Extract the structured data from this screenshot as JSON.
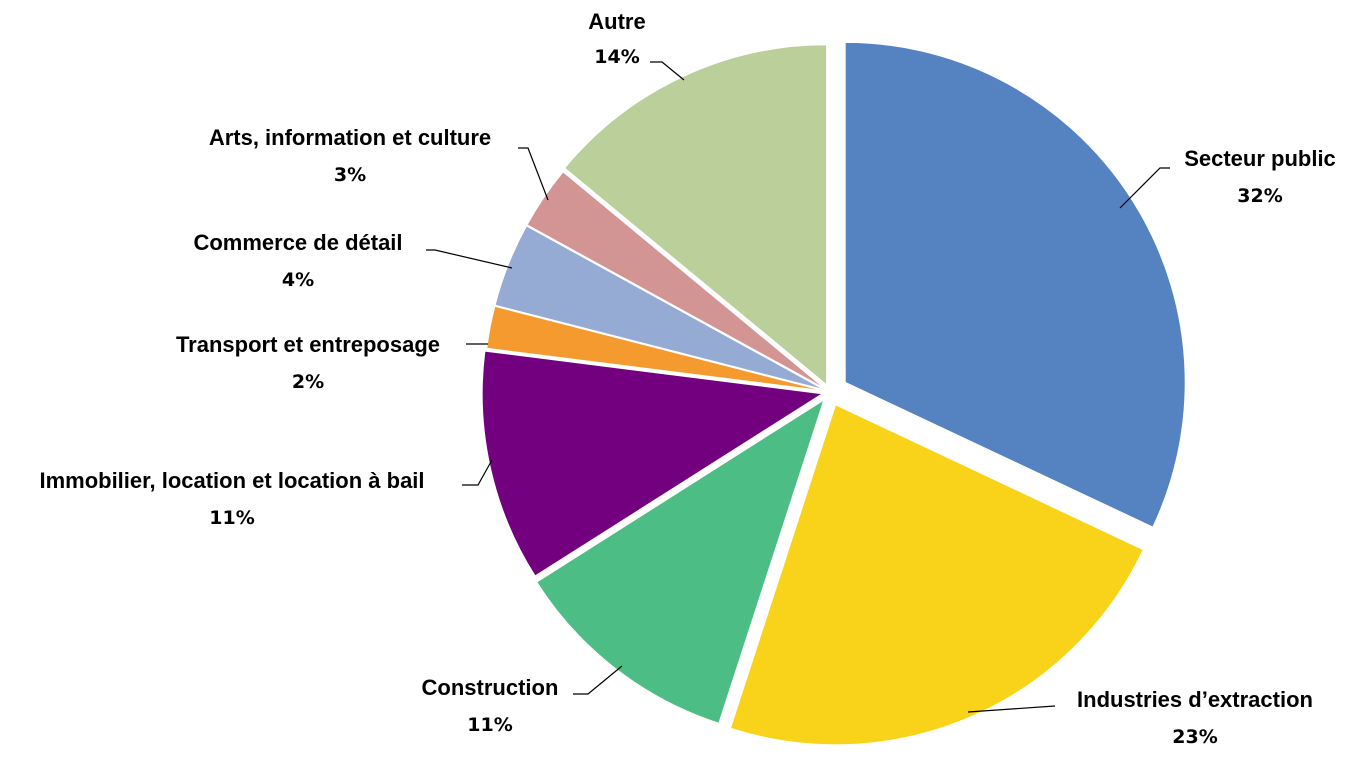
{
  "chart_data": {
    "type": "pie",
    "title": "",
    "slices": [
      {
        "label": "Secteur public",
        "value": 32,
        "value_label": "32%",
        "color": "#5583c2"
      },
      {
        "label": "Industries d’extraction",
        "value": 23,
        "value_label": "23%",
        "color": "#f9d21a"
      },
      {
        "label": "Construction",
        "value": 11,
        "value_label": "11%",
        "color": "#4cbd84"
      },
      {
        "label": "Immobilier, location et location à bail",
        "value": 11,
        "value_label": "11%",
        "color": "#72007f"
      },
      {
        "label": "Transport et entreposage",
        "value": 2,
        "value_label": "2%",
        "color": "#f59a2e"
      },
      {
        "label": "Commerce de détail",
        "value": 4,
        "value_label": "4%",
        "color": "#95abd3"
      },
      {
        "label": "Arts, information et culture",
        "value": 3,
        "value_label": "3%",
        "color": "#d39594"
      },
      {
        "label": "Autre",
        "value": 14,
        "value_label": "14%",
        "color": "#bbcf9a"
      }
    ],
    "legend": "none",
    "data_labels": "outside with leader lines"
  }
}
